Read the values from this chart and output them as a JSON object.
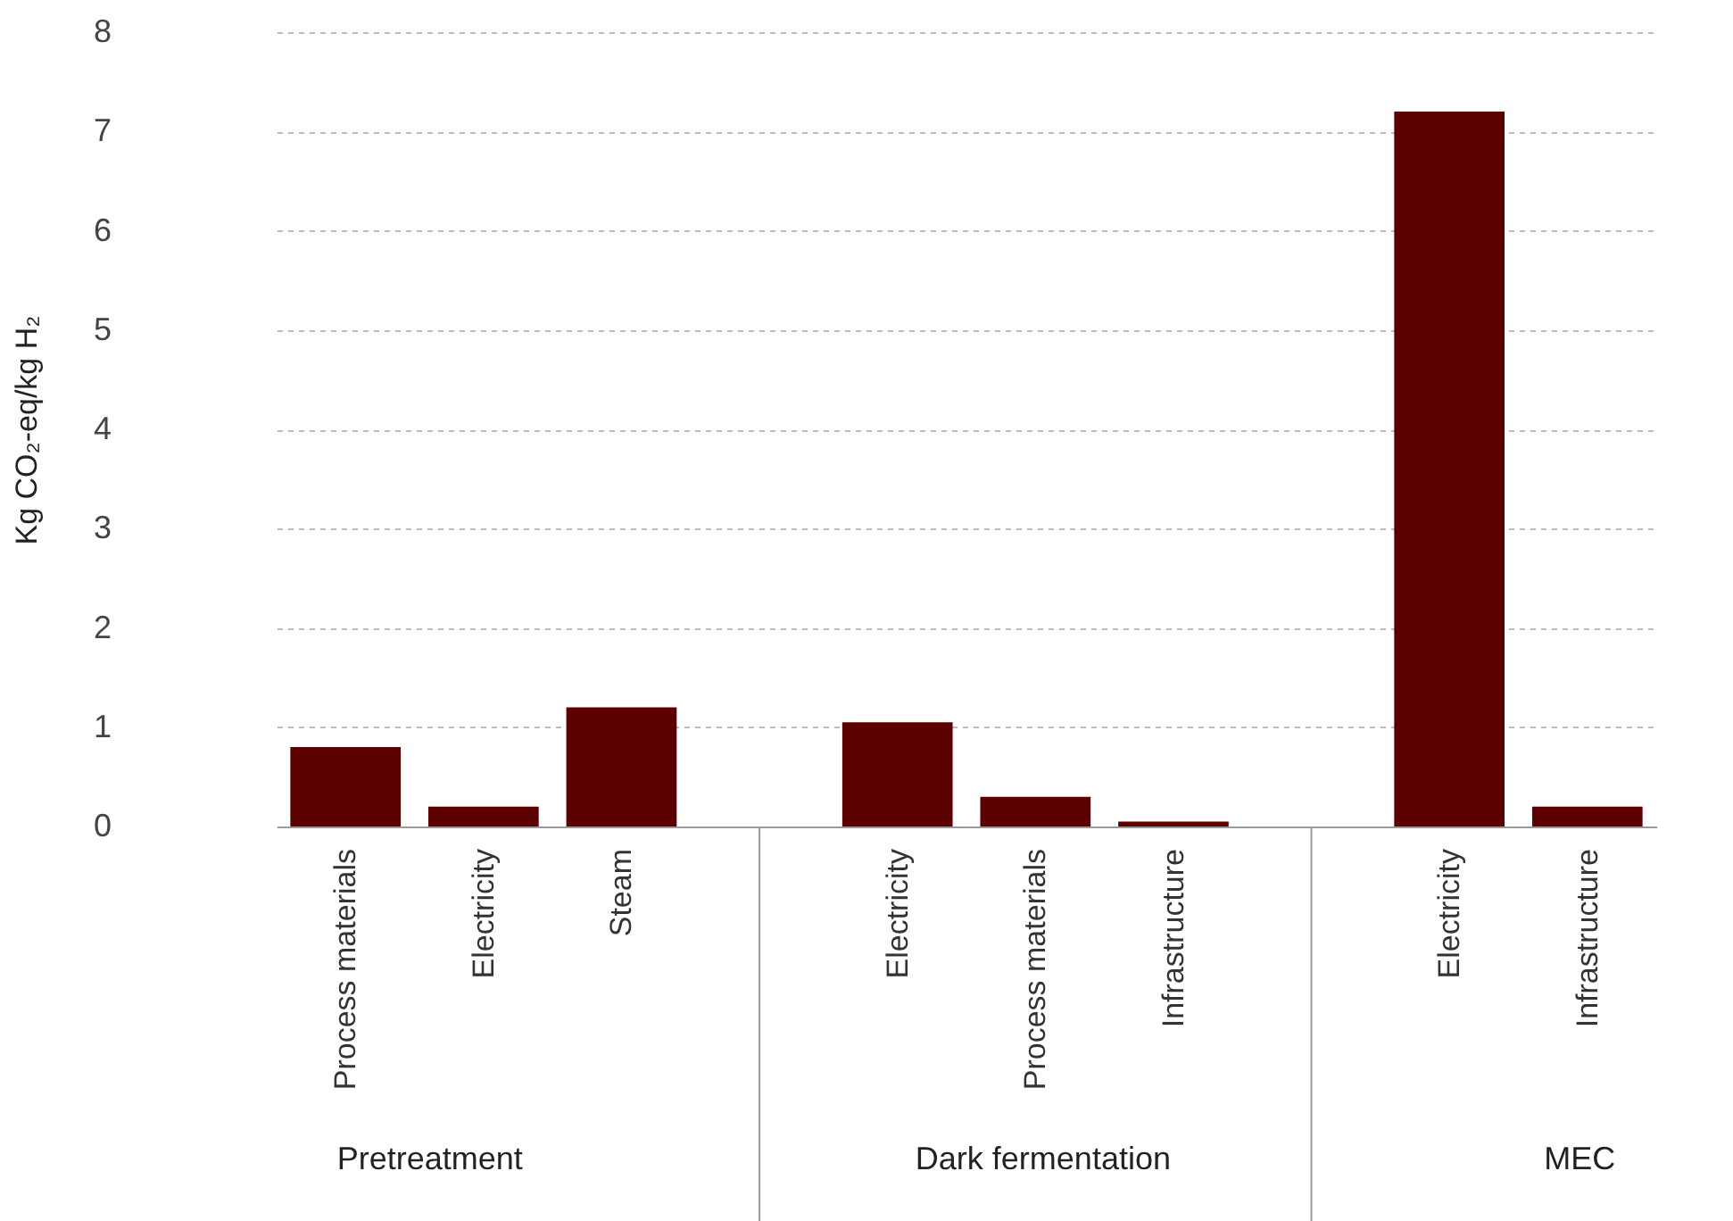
{
  "chart_data": {
    "type": "bar",
    "ylabel": "Kg CO₂-eq/kg H₂",
    "categories": [
      "Process materials",
      "Electricity",
      "Steam",
      null,
      "Electricity",
      "Process materials",
      "Infrastructure",
      null,
      "Electricity",
      "Infrastructure"
    ],
    "values": [
      0.8,
      0.2,
      1.2,
      null,
      1.05,
      0.3,
      0.05,
      null,
      7.2,
      0.2
    ],
    "color": "#5c0000",
    "ylim": [
      0,
      8
    ],
    "yticks": [
      0,
      1,
      2,
      3,
      4,
      5,
      6,
      7,
      8
    ],
    "grid": "y",
    "annotations": [
      "Pretreatment",
      "Dark fermentation",
      "MEC"
    ]
  }
}
